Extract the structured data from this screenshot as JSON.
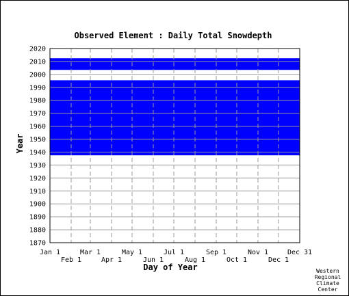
{
  "chart_data": {
    "type": "heatmap",
    "title": "Observed Element : Daily Total Snowdepth",
    "xlabel": "Day of Year",
    "ylabel": "Year",
    "ylim": [
      1870,
      2020
    ],
    "yticks": [
      1870,
      1880,
      1890,
      1900,
      1910,
      1920,
      1930,
      1940,
      1950,
      1960,
      1970,
      1980,
      1990,
      2000,
      2010,
      2020
    ],
    "xlim": [
      1,
      366
    ],
    "xticks_upper": [
      {
        "day": 1,
        "label": "Jan 1"
      },
      {
        "day": 60,
        "label": "Mar 1"
      },
      {
        "day": 121,
        "label": "May 1"
      },
      {
        "day": 182,
        "label": "Jul 1"
      },
      {
        "day": 244,
        "label": "Sep 1"
      },
      {
        "day": 305,
        "label": "Nov 1"
      },
      {
        "day": 366,
        "label": "Dec 31"
      }
    ],
    "xticks_lower": [
      {
        "day": 32,
        "label": "Feb 1"
      },
      {
        "day": 91,
        "label": "Apr 1"
      },
      {
        "day": 152,
        "label": "Jun 1"
      },
      {
        "day": 213,
        "label": "Aug 1"
      },
      {
        "day": 274,
        "label": "Oct 1"
      },
      {
        "day": 335,
        "label": "Dec 1"
      }
    ],
    "fill_color": "#0000ff",
    "grid": true,
    "series": [
      {
        "day_start": 1,
        "day_end": 366,
        "year_start": 1937.5,
        "year_end": 1995.5
      },
      {
        "day_start": 1,
        "day_end": 366,
        "year_start": 2003.5,
        "year_end": 2012.5
      }
    ]
  },
  "credit": [
    "Western",
    "Regional",
    "Climate",
    "Center"
  ]
}
